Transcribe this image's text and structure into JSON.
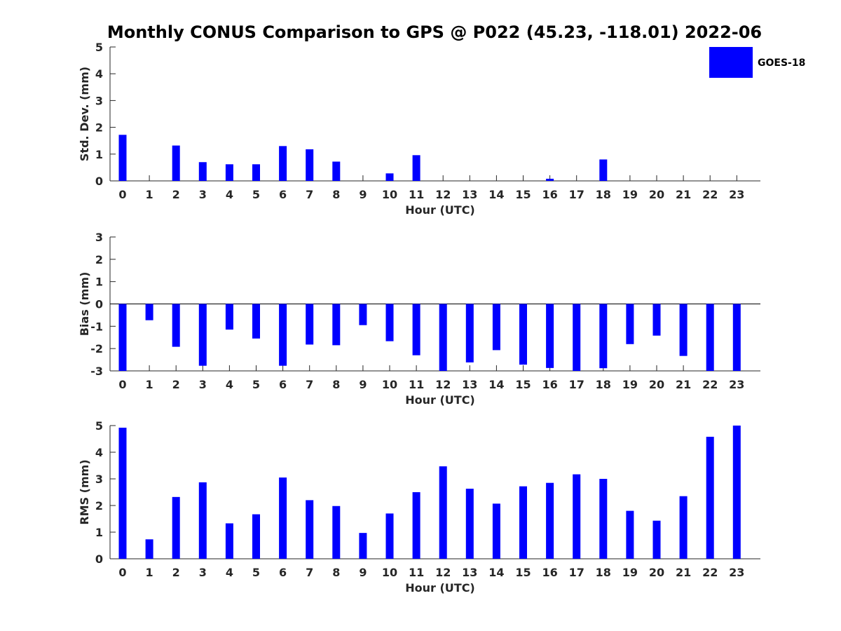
{
  "title": "Monthly CONUS Comparison to GPS @ P022 (45.23, -118.01) 2022-06",
  "legend": {
    "label": "GOES-18",
    "color": "#0000ff",
    "placement": "top-right"
  },
  "chart_data": [
    {
      "type": "bar",
      "name": "std",
      "xlabel": "Hour (UTC)",
      "ylabel": "Std. Dev. (mm)",
      "ylim": [
        0,
        5
      ],
      "yticks": [
        0,
        1,
        2,
        3,
        4,
        5
      ],
      "categories": [
        "0",
        "1",
        "2",
        "3",
        "4",
        "5",
        "6",
        "7",
        "8",
        "9",
        "10",
        "11",
        "12",
        "13",
        "14",
        "15",
        "16",
        "17",
        "18",
        "19",
        "20",
        "21",
        "22",
        "23"
      ],
      "values": [
        1.72,
        null,
        1.32,
        0.7,
        0.62,
        0.62,
        1.3,
        1.18,
        0.72,
        null,
        0.28,
        0.96,
        null,
        null,
        null,
        null,
        0.08,
        null,
        0.8,
        null,
        null,
        null,
        null,
        null
      ],
      "color": "#0000ff"
    },
    {
      "type": "bar",
      "name": "bias",
      "xlabel": "Hour (UTC)",
      "ylabel": "Bias (mm)",
      "ylim": [
        -3,
        3
      ],
      "yticks": [
        -3,
        -2,
        -1,
        0,
        1,
        2,
        3
      ],
      "categories": [
        "0",
        "1",
        "2",
        "3",
        "4",
        "5",
        "6",
        "7",
        "8",
        "9",
        "10",
        "11",
        "12",
        "13",
        "14",
        "15",
        "16",
        "17",
        "18",
        "19",
        "20",
        "21",
        "22",
        "23"
      ],
      "values": [
        -3.0,
        -0.73,
        -1.92,
        -2.77,
        -1.15,
        -1.55,
        -2.77,
        -1.82,
        -1.85,
        -0.95,
        -1.67,
        -2.3,
        -3.0,
        -2.62,
        -2.07,
        -2.72,
        -2.87,
        -3.0,
        -2.88,
        -1.8,
        -1.42,
        -2.33,
        -3.0,
        -3.0
      ],
      "color": "#0000ff"
    },
    {
      "type": "bar",
      "name": "rms",
      "xlabel": "Hour (UTC)",
      "ylabel": "RMS (mm)",
      "ylim": [
        0,
        5
      ],
      "yticks": [
        0,
        1,
        2,
        3,
        4,
        5
      ],
      "categories": [
        "0",
        "1",
        "2",
        "3",
        "4",
        "5",
        "6",
        "7",
        "8",
        "9",
        "10",
        "11",
        "12",
        "13",
        "14",
        "15",
        "16",
        "17",
        "18",
        "19",
        "20",
        "21",
        "22",
        "23"
      ],
      "values": [
        4.92,
        0.73,
        2.32,
        2.87,
        1.33,
        1.67,
        3.05,
        2.2,
        1.98,
        0.97,
        1.7,
        2.5,
        3.47,
        2.63,
        2.07,
        2.72,
        2.85,
        3.17,
        3.0,
        1.8,
        1.43,
        2.35,
        4.58,
        5.0
      ],
      "color": "#0000ff"
    }
  ]
}
